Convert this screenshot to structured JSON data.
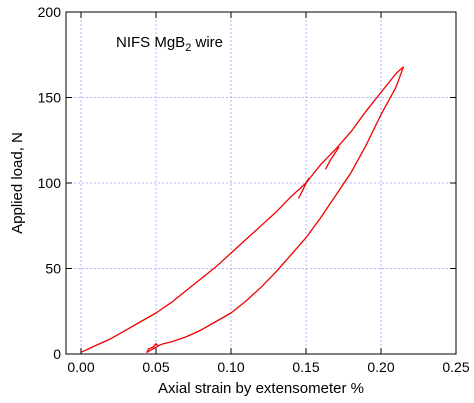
{
  "chart_data": {
    "type": "line",
    "xlabel": "Axial strain by extensometer %",
    "ylabel": "Applied load, N",
    "xlim": [
      -0.01,
      0.25
    ],
    "ylim": [
      0,
      200
    ],
    "xticks": [
      "0.00",
      "0.05",
      "0.10",
      "0.15",
      "0.20",
      "0.25"
    ],
    "xtick_values": [
      0.0,
      0.05,
      0.1,
      0.15,
      0.2,
      0.25
    ],
    "yticks": [
      "0",
      "50",
      "100",
      "150",
      "200"
    ],
    "ytick_values": [
      0,
      50,
      100,
      150,
      200
    ],
    "grid": true,
    "annotation": {
      "prefix": "NIFS MgB",
      "subscript": "2",
      "suffix": " wire"
    },
    "series_color": "#ee0000",
    "grid_color": "#9aa0ff",
    "series": [
      {
        "x": [
          0.0,
          0.01,
          0.02,
          0.03,
          0.04,
          0.05,
          0.06,
          0.07,
          0.08,
          0.09,
          0.1,
          0.11,
          0.12,
          0.13,
          0.14,
          0.15,
          0.16,
          0.17,
          0.18,
          0.19,
          0.2,
          0.21,
          0.215
        ],
        "y": [
          1,
          5,
          9,
          14,
          19,
          24,
          30,
          37,
          44,
          51,
          59,
          67,
          75,
          83,
          92,
          100,
          111,
          120,
          130,
          142,
          153,
          164,
          168
        ]
      },
      {
        "x": [
          0.215,
          0.21,
          0.2,
          0.19,
          0.18,
          0.17,
          0.16,
          0.15,
          0.14,
          0.13,
          0.12,
          0.11,
          0.1,
          0.09,
          0.08,
          0.07,
          0.06,
          0.055,
          0.052,
          0.05,
          0.048,
          0.046
        ],
        "y": [
          168,
          156,
          140,
          122,
          106,
          93,
          80,
          68,
          58,
          48,
          39,
          31,
          24,
          19,
          14,
          10,
          7,
          6,
          5,
          4,
          3,
          2
        ]
      },
      {
        "x": [
          0.145,
          0.148,
          0.15,
          0.152
        ],
        "y": [
          91,
          96,
          100,
          103
        ]
      },
      {
        "x": [
          0.163,
          0.166,
          0.169,
          0.172
        ],
        "y": [
          108,
          113,
          117,
          121
        ]
      },
      {
        "x": [
          0.046,
          0.044,
          0.045,
          0.048,
          0.05,
          0.051
        ],
        "y": [
          2,
          1,
          3,
          4,
          6,
          5
        ]
      }
    ]
  }
}
